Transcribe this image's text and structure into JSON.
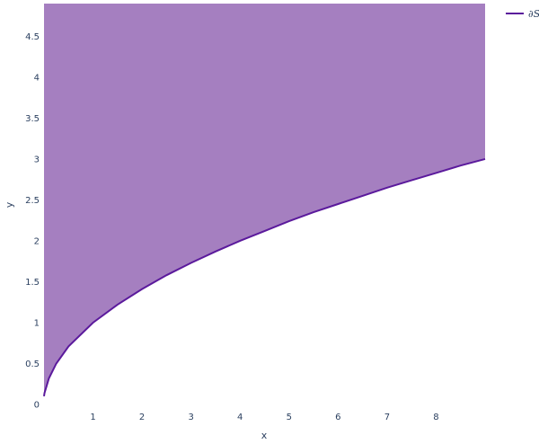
{
  "chart_data": {
    "type": "area",
    "title": "",
    "xlabel": "x",
    "ylabel": "y",
    "xlim": [
      0,
      9
    ],
    "ylim": [
      0,
      4.9
    ],
    "x_ticks": [
      1,
      2,
      3,
      4,
      5,
      6,
      7,
      8
    ],
    "y_ticks": [
      0,
      0.5,
      1,
      1.5,
      2,
      2.5,
      3,
      3.5,
      4,
      4.5
    ],
    "x_tick_labels": [
      "1",
      "2",
      "3",
      "4",
      "5",
      "6",
      "7",
      "8"
    ],
    "y_tick_labels": [
      "0",
      "0.5",
      "1",
      "1.5",
      "2",
      "2.5",
      "3",
      "3.5",
      "4",
      "4.5"
    ],
    "grid": false,
    "legend_position": "top-right",
    "series": [
      {
        "name": "∂S",
        "kind": "line",
        "color": "#5b1a9c",
        "x": [
          0,
          0.01,
          0.04,
          0.1,
          0.25,
          0.5,
          1,
          1.5,
          2,
          2.5,
          3,
          3.5,
          4,
          4.5,
          5,
          5.5,
          6,
          6.5,
          7,
          7.5,
          8,
          8.5,
          9
        ],
        "y": [
          0.1,
          0.14,
          0.2,
          0.32,
          0.5,
          0.71,
          1.0,
          1.22,
          1.41,
          1.58,
          1.73,
          1.87,
          2.0,
          2.12,
          2.24,
          2.35,
          2.45,
          2.55,
          2.65,
          2.74,
          2.83,
          2.92,
          3.0
        ]
      }
    ],
    "fill": {
      "region": "above-curve",
      "color": "#a57fc0"
    }
  }
}
